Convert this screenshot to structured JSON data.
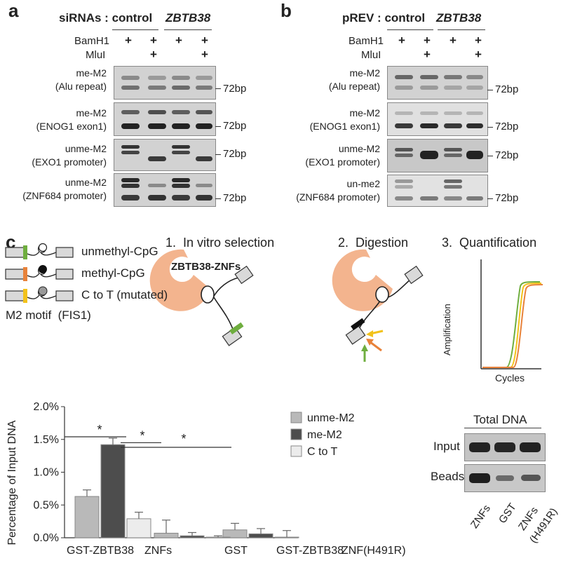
{
  "panel_a": {
    "letter": "a",
    "header_prefix": "siRNAs : ",
    "group1": "control",
    "group2": "ZBTB38",
    "enzyme1": "BamH1",
    "enzyme2": "MluI",
    "plus": "+",
    "rows": [
      {
        "l1": "me-M2",
        "l2": "(Alu repeat)",
        "bp": "72bp"
      },
      {
        "l1": "me-M2",
        "l2": "(ENOG1 exon1)",
        "bp": "72bp"
      },
      {
        "l1": "unme-M2",
        "l2": "(EXO1 promoter)",
        "bp": "72bp"
      },
      {
        "l1": "unme-M2",
        "l2": "(ZNF684 promoter)",
        "bp": "72bp"
      }
    ]
  },
  "panel_b": {
    "letter": "b",
    "header_prefix": "pREV : ",
    "group1": "control",
    "group2": "ZBTB38",
    "enzyme1": "BamH1",
    "enzyme2": "MluI",
    "plus": "+",
    "rows": [
      {
        "l1": "me-M2",
        "l2": "(Alu repeat)",
        "bp": "72bp"
      },
      {
        "l1": "me-M2",
        "l2": "(ENOG1 exon1)",
        "bp": "72bp"
      },
      {
        "l1": "unme-M2",
        "l2": "(EXO1 promoter)",
        "bp": "72bp"
      },
      {
        "l1": "un-me2",
        "l2": "(ZNF684 promoter)",
        "bp": "72bp"
      }
    ]
  },
  "panel_c": {
    "letter": "c",
    "legend": [
      {
        "label": "unmethyl-CpG",
        "color": "#6fae3f"
      },
      {
        "label": "methyl-CpG",
        "color": "#e8823a"
      },
      {
        "label": "C to T (mutated)",
        "color": "#f2c21b"
      }
    ],
    "motif_label": "M2 motif  (FIS1)",
    "step1": "1.  In vitro selection",
    "step2": "2.  Digestion",
    "step3": "3.  Quantification",
    "protein_label": "ZBTB38-ZNFs",
    "qpcr_ylabel": "Amplification",
    "qpcr_xlabel": "Cycles",
    "total_dna_title": "Total DNA",
    "gel_rows": [
      "Input",
      "Beads"
    ],
    "gel_lanes": [
      "ZNFs",
      "GST",
      "ZNFs",
      "(H491R)"
    ],
    "significance": "*",
    "colors": {
      "salmon": "#f3b48e",
      "unme": "#b9b9b9",
      "me": "#4d4d4d",
      "ctot": "#ececec"
    }
  },
  "chart_data": {
    "type": "bar",
    "ylabel": "Percentage of Input DNA",
    "ylim": [
      0,
      2.0
    ],
    "yticks": [
      "0.0%",
      "0.5%",
      "1.0%",
      "1.5%",
      "2.0%"
    ],
    "groups": [
      "GST-ZBTB38 ZNFs",
      "GST",
      "GST-ZBTB38 ZNF(H491R)"
    ],
    "series": [
      {
        "name": "unme-M2",
        "values": [
          0.63,
          0.07,
          0.12
        ],
        "errors": [
          0.1,
          0.2,
          0.1
        ]
      },
      {
        "name": "me-M2",
        "values": [
          1.42,
          0.03,
          0.06
        ],
        "errors": [
          0.1,
          0.05,
          0.08
        ]
      },
      {
        "name": "C to T",
        "values": [
          0.29,
          0.01,
          0.01
        ],
        "errors": [
          0.1,
          0.02,
          0.1
        ]
      }
    ],
    "xtick_texts": [
      "GST-ZBTB38",
      "ZNFs",
      "GST",
      "GST-ZBTB38",
      "ZNF(H491R)"
    ],
    "legend_position": "top-right"
  }
}
